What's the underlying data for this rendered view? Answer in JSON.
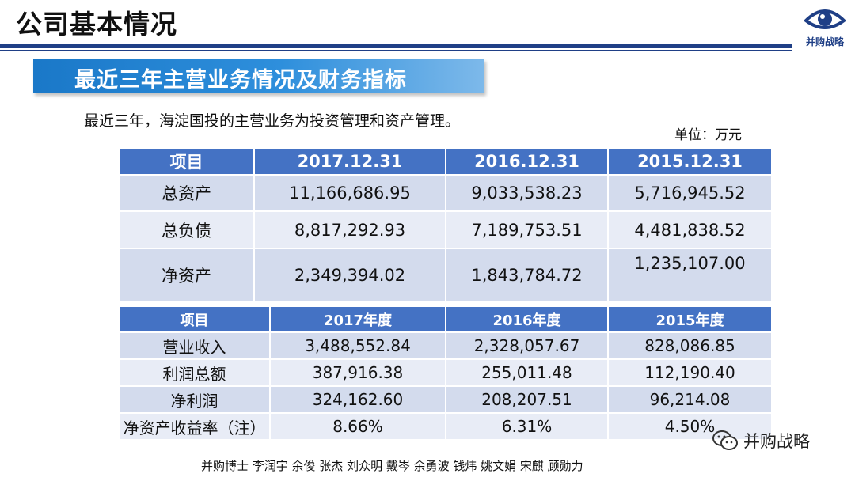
{
  "header": {
    "title": "公司基本情况",
    "logo_text": "并购战略"
  },
  "banner": {
    "text": "最近三年主营业务情况及财务指标"
  },
  "intro": "最近三年，海淀国投的主营业务为投资管理和资产管理。",
  "unit": "单位：万元",
  "table_balance": {
    "headers": [
      "项目",
      "2017.12.31",
      "2016.12.31",
      "2015.12.31"
    ],
    "rows": [
      [
        "总资产",
        "11,166,686.95",
        "9,033,538.23",
        "5,716,945.52"
      ],
      [
        "总负债",
        "8,817,292.93",
        "7,189,753.51",
        "4,481,838.52"
      ],
      [
        "净资产",
        "2,349,394.02",
        "1,843,784.72",
        "1,235,107.00"
      ]
    ]
  },
  "table_income": {
    "headers": [
      "项目",
      "2017年度",
      "2016年度",
      "2015年度"
    ],
    "rows": [
      [
        "营业收入",
        "3,488,552.84",
        "2,328,057.67",
        "828,086.85"
      ],
      [
        "利润总额",
        "387,916.38",
        "255,011.48",
        "112,190.40"
      ],
      [
        "净利润",
        "324,162.60",
        "208,207.51",
        "96,214.08"
      ],
      [
        "净资产收益率（注）",
        "8.66%",
        "6.31%",
        "4.50%"
      ]
    ]
  },
  "footer": "并购博士 李润宇 余俊 张杰 刘众明 戴岑 余勇波 钱炜 姚文娟 宋麒 顾勋力",
  "watermark": {
    "icon": "wechat-icon",
    "text": "并购战略"
  }
}
